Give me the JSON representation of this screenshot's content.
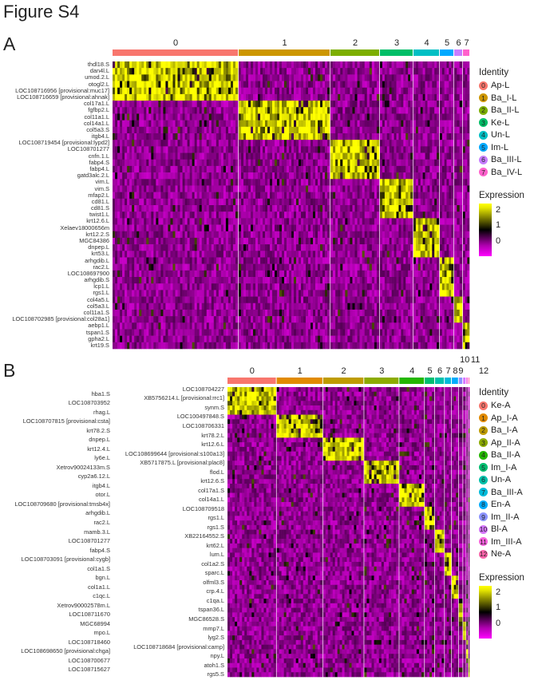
{
  "figure_title": "Figure S4",
  "chart_data": [
    {
      "type": "heatmap",
      "panel": "A",
      "clusters": [
        "0",
        "1",
        "2",
        "3",
        "4",
        "5",
        "6",
        "7"
      ],
      "cluster_relative_size": [
        158,
        115,
        62,
        42,
        33,
        18,
        11,
        9
      ],
      "cluster_colors": [
        "#F8766D",
        "#CD9600",
        "#7CAE00",
        "#00BE67",
        "#00BFC4",
        "#00A9FF",
        "#C77CFF",
        "#FF61CC"
      ],
      "genes": [
        "thdl18.S",
        "dan4l.L",
        "umod.2.L",
        "otogl2.L",
        "LOC108716956 [provisional:muc17]",
        "LOC108716659 [provisional:ahnak]",
        "col17a1.L",
        "fgfbp2.L",
        "col11a1.L",
        "col14a1.L",
        "col5a3.S",
        "itgb4.L",
        "LOC108719454 [provisional:lypd2]",
        "LOC108701277",
        "cnfn.1.L",
        "fabp4.S",
        "fabp4.L",
        "gatd3alc.2.L",
        "vim.L",
        "vim.S",
        "mfap2.L",
        "cd81.L",
        "cd81.S",
        "twist1.L",
        "krt12.6.L",
        "Xelaev18000656m",
        "krt12.2.S",
        "MGC84386",
        "dnpep.L",
        "krt53.L",
        "arhgdib.L",
        "rac2.L",
        "LOC108697900",
        "arhgdib.S",
        "lcp1.L",
        "rgs1.L",
        "col4a5.L",
        "col5a3.L",
        "col11a1.S",
        "LOC108702985 [provisional:col28a1]",
        "aebp1.L",
        "tspan1.S",
        "gpha2.L",
        "krt19.S"
      ],
      "gene_marker_cluster": [
        0,
        0,
        0,
        0,
        0,
        0,
        1,
        1,
        1,
        1,
        1,
        1,
        2,
        2,
        2,
        2,
        2,
        2,
        3,
        3,
        3,
        3,
        3,
        3,
        4,
        4,
        4,
        4,
        4,
        4,
        5,
        5,
        5,
        5,
        5,
        5,
        6,
        6,
        6,
        6,
        7,
        7,
        7,
        7
      ],
      "legend": {
        "identity_title": "Identity",
        "identities": [
          "Ap-L",
          "Ba_I-L",
          "Ba_II-L",
          "Ke-L",
          "Un-L",
          "Im-L",
          "Ba_III-L",
          "Ba_IV-L"
        ],
        "expression_title": "Expression",
        "expression_ticks": [
          "2",
          "1",
          "0"
        ]
      },
      "color_scale": {
        "low": "#FF00FF",
        "mid": "#000000",
        "high": "#FFFF00",
        "range": [
          -0.5,
          2.5
        ]
      }
    },
    {
      "type": "heatmap",
      "panel": "B",
      "clusters": [
        "0",
        "1",
        "2",
        "3",
        "4",
        "5",
        "6",
        "7",
        "8",
        "9",
        "10",
        "11",
        "12"
      ],
      "cluster_relative_size": [
        91,
        86,
        76,
        65,
        47,
        19,
        18,
        13,
        13,
        8,
        6,
        4,
        3
      ],
      "cluster_colors": [
        "#F8766D",
        "#E18A00",
        "#BE9C00",
        "#8CAB00",
        "#24B700",
        "#00BE70",
        "#00C1AB",
        "#00BBDA",
        "#00ACFC",
        "#8B93FF",
        "#D575FE",
        "#F962DD",
        "#FF65AC"
      ],
      "genes": [
        "LOC108704227",
        "hba1.S",
        "XB5756214.L [provisional:rrc1]",
        "LOC108703952",
        "synm.S",
        "rhag.L",
        "LOC100497848.S",
        "LOC108707815 [provisional:csta]",
        "LOC108706331",
        "krt78.2.S",
        "krt78.2.L",
        "dnpep.L",
        "krt12.6.L",
        "krt12.4.L",
        "LOC108699644 [provisional:s100a13]",
        "ly6e.L",
        "XB5717875.L [provisional:plac8]",
        "Xetrov90024133m.S",
        "flod.L",
        "cyp2a6.12.L",
        "krt12.6.S",
        "itgb4.L",
        "col17a1.S",
        "otor.L",
        "col14a1.L",
        "LOC108709680 [provisional:tmsb4x]",
        "LOC108709518",
        "arhgdib.L",
        "rgs1.L",
        "rac2.L",
        "rgs1.S",
        "mamb.3.L",
        "XB22164552.S",
        "LOC108701277",
        "krt62.L",
        "fabp4.S",
        "lum.L",
        "LOC108703091 [provisional:cygb]",
        "col1a2.S",
        "col1a1.S",
        "sparc.L",
        "bgn.L",
        "olfml3.S",
        "col1a1.L",
        "crp.4.L",
        "c1qc.L",
        "c1qa.L",
        "Xetrov90002578m.L",
        "tspan36.L",
        "LOC108711670",
        "MGC86528.S",
        "MGC68994",
        "mmp7.L",
        "mpo.L",
        "lyg2.S",
        "LOC108718460",
        "LOC108718684 [provisional:camp]",
        "LOC108698650 [provisional:chga]",
        "npy.L",
        "LOC108700677",
        "atoh1.S",
        "LOC108715627",
        "rgs5.S"
      ],
      "gene_marker_cluster": [
        0,
        0,
        0,
        0,
        0,
        0,
        1,
        1,
        1,
        1,
        1,
        2,
        2,
        2,
        2,
        2,
        3,
        3,
        3,
        3,
        3,
        4,
        4,
        4,
        4,
        4,
        5,
        5,
        5,
        5,
        5,
        6,
        6,
        6,
        6,
        6,
        7,
        7,
        7,
        7,
        7,
        8,
        8,
        8,
        8,
        8,
        9,
        9,
        9,
        9,
        9,
        10,
        10,
        10,
        10,
        11,
        11,
        11,
        11,
        12,
        12,
        12,
        12
      ],
      "legend": {
        "identity_title": "Identity",
        "identities": [
          "Ke-A",
          "Ap_I-A",
          "Ba_I-A",
          "Ap_II-A",
          "Ba_II-A",
          "Im_I-A",
          "Un-A",
          "Ba_III-A",
          "En-A",
          "Im_II-A",
          "Bl-A",
          "Im_III-A",
          "Ne-A"
        ],
        "expression_title": "Expression",
        "expression_ticks": [
          "2",
          "1",
          "0"
        ]
      },
      "color_scale": {
        "low": "#FF00FF",
        "mid": "#000000",
        "high": "#FFFF00",
        "range": [
          -0.5,
          2.5
        ]
      }
    }
  ]
}
